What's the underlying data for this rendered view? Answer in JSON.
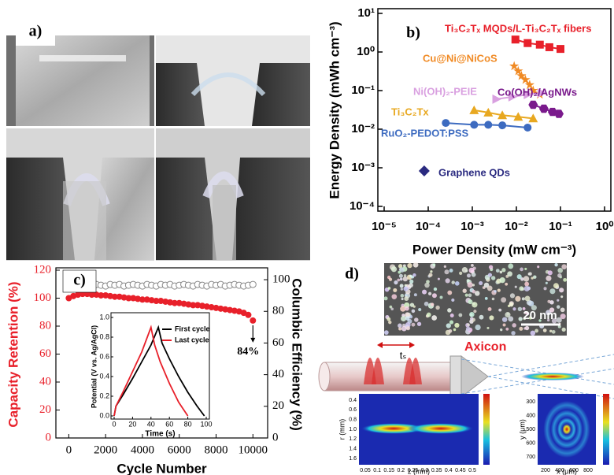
{
  "panel_a": {
    "label": "a)"
  },
  "chart_data": [
    {
      "type": "scatter",
      "label": "b)",
      "x_label": "Power Density (mW cm⁻³)",
      "y_label": "Energy Density (mWh cm⁻³)",
      "log_x": true,
      "log_y": true,
      "xlim": [
        1e-05,
        1
      ],
      "ylim": [
        0.0001,
        10
      ],
      "xticks": [
        {
          "value": 1e-05,
          "label": "10⁻⁵"
        },
        {
          "value": 0.0001,
          "label": "10⁻⁴"
        },
        {
          "value": 0.001,
          "label": "10⁻³"
        },
        {
          "value": 0.01,
          "label": "10⁻²"
        },
        {
          "value": 0.1,
          "label": "10⁻¹"
        },
        {
          "value": 1,
          "label": "10⁰"
        }
      ],
      "yticks": [
        {
          "value": 0.0001,
          "label": "10⁻⁴"
        },
        {
          "value": 0.001,
          "label": "10⁻³"
        },
        {
          "value": 0.01,
          "label": "10⁻²"
        },
        {
          "value": 0.1,
          "label": "10⁻¹"
        },
        {
          "value": 1,
          "label": "10⁰"
        },
        {
          "value": 10,
          "label": "10¹"
        }
      ],
      "series": [
        {
          "name": "Ti₃C₂Tₓ MQDs/L-Ti₃C₂Tₓ fibers",
          "color": "#e8202a",
          "marker": "square",
          "x": [
            0.0095,
            0.018,
            0.034,
            0.056,
            0.1
          ],
          "values": [
            2.1,
            1.7,
            1.55,
            1.33,
            1.2
          ]
        },
        {
          "name": "Cu@Ni@NiCoS",
          "color": "#f08a24",
          "marker": "star",
          "x": [
            0.0089,
            0.011,
            0.013,
            0.016,
            0.02,
            0.024,
            0.034
          ],
          "values": [
            0.43,
            0.32,
            0.24,
            0.19,
            0.14,
            0.1,
            0.079
          ]
        },
        {
          "name": "Ni(OH)₂-PEIE",
          "color": "#d9a0e0",
          "marker": "triangle-right",
          "x": [
            0.0035,
            0.0081,
            0.018,
            0.037
          ],
          "values": [
            0.06,
            0.069,
            0.079,
            0.087
          ]
        },
        {
          "name": "Co(OH)₂/AgNWs",
          "color": "#7a1a8c",
          "marker": "hexagon",
          "x": [
            0.024,
            0.042,
            0.066,
            0.092
          ],
          "values": [
            0.043,
            0.034,
            0.028,
            0.025
          ]
        },
        {
          "name": "Ti₃C₂Tx",
          "color": "#e8a820",
          "marker": "triangle",
          "x": [
            0.0011,
            0.0023,
            0.0048,
            0.011,
            0.024
          ],
          "values": [
            0.031,
            0.027,
            0.023,
            0.021,
            0.019
          ]
        },
        {
          "name": "RuO₂-PEDOT:PSS",
          "color": "#3d6bc0",
          "marker": "circle",
          "x": [
            0.00025,
            0.0011,
            0.0023,
            0.0048,
            0.018
          ],
          "values": [
            0.0145,
            0.013,
            0.013,
            0.0126,
            0.011
          ]
        },
        {
          "name": "Graphene QDs",
          "color": "#2a2a80",
          "marker": "diamond",
          "x": [
            8.1e-05
          ],
          "values": [
            0.00083
          ]
        }
      ]
    },
    {
      "type": "scatter",
      "label": "c)",
      "x_label": "Cycle Number",
      "y_label": "Capacity Retention (%)",
      "y2_label": "Columbic Efficiency (%)",
      "xlim": [
        -700,
        10800
      ],
      "ylim": [
        0,
        120
      ],
      "y2lim": [
        0,
        106
      ],
      "xticks": [
        0,
        2000,
        4000,
        6000,
        8000,
        10000
      ],
      "yticks": [
        0,
        20,
        40,
        60,
        80,
        100,
        120
      ],
      "y2ticks": [
        0,
        20,
        40,
        60,
        80,
        100
      ],
      "x": [
        0,
        250,
        500,
        750,
        1000,
        1250,
        1500,
        1750,
        2000,
        2250,
        2500,
        2750,
        3000,
        3250,
        3500,
        3750,
        4000,
        4250,
        4500,
        4750,
        5000,
        5250,
        5500,
        5750,
        6000,
        6250,
        6500,
        6750,
        7000,
        7250,
        7500,
        7750,
        8000,
        8250,
        8500,
        8750,
        9000,
        9250,
        9500,
        9750,
        10000
      ],
      "series": [
        {
          "name": "Capacity Retention",
          "color": "#e8202a",
          "values": [
            100,
            101.5,
            102.5,
            103,
            103,
            102.5,
            102.5,
            102,
            102,
            101.5,
            101,
            101,
            100.5,
            100,
            100,
            99.5,
            99,
            99,
            98.5,
            98,
            98,
            97.5,
            97,
            96.5,
            96.5,
            96,
            95.5,
            95,
            95,
            94.5,
            94,
            93.5,
            93,
            92.5,
            92,
            91.5,
            91,
            90.5,
            89.5,
            88,
            84
          ]
        },
        {
          "name": "Columbic Efficiency",
          "color": "#888888",
          "axis": "y2",
          "values": [
            96.5,
            97,
            96,
            97,
            96.5,
            96,
            97,
            96.5,
            96,
            97,
            96.5,
            97,
            96,
            96.5,
            97,
            96.5,
            96,
            97,
            96.5,
            96,
            97,
            96.5,
            97,
            96,
            96.5,
            97,
            96.5,
            96,
            97,
            96.5,
            96,
            97,
            96.5,
            97,
            96,
            96.5,
            97,
            96.5,
            96,
            96.5,
            97
          ]
        }
      ],
      "annotation": "84%"
    },
    {
      "type": "line",
      "x_label": "Time (s)",
      "y_label": "Potential (V vs. Ag/AgCl)",
      "xlim": [
        0,
        100
      ],
      "ylim": [
        0,
        1
      ],
      "xticks": [
        0,
        20,
        40,
        60,
        80,
        100
      ],
      "yticks": [
        {
          "value": 0,
          "label": "0.0"
        },
        0.2,
        0.4,
        0.6,
        0.8,
        {
          "value": 1,
          "label": "1.0"
        }
      ],
      "series": [
        {
          "name": "First cycle",
          "color": "#000000",
          "x": [
            0,
            2,
            10,
            20,
            30,
            40,
            48,
            52,
            60,
            70,
            80,
            90,
            98
          ],
          "values": [
            0,
            0.1,
            0.22,
            0.38,
            0.55,
            0.72,
            0.9,
            0.74,
            0.58,
            0.4,
            0.24,
            0.1,
            0
          ]
        },
        {
          "name": "Last cycle",
          "color": "#e8202a",
          "x": [
            0,
            2,
            10,
            20,
            30,
            40,
            44,
            50,
            60,
            70,
            80
          ],
          "values": [
            0,
            0.1,
            0.25,
            0.45,
            0.65,
            0.9,
            0.72,
            0.55,
            0.33,
            0.14,
            0
          ]
        }
      ]
    }
  ],
  "panel_d": {
    "label": "d)",
    "scale_bar": "20 nm",
    "axicon": "Axicon",
    "delay": "tₛ",
    "left_map": {
      "y_label": "r (mm)",
      "x_label": "z (mm)",
      "y_ticks": [
        "0.4",
        "0.6",
        "0.8",
        "1.0",
        "1.2",
        "1.4",
        "1.6"
      ],
      "x_ticks": [
        "0.05",
        "0.1",
        "0.15",
        "0.2",
        "0.25",
        "0.3",
        "0.35",
        "0.4",
        "0.45",
        "0.5"
      ]
    },
    "right_map": {
      "y_label": "y (μm)",
      "x_label": "x (μm)",
      "y_ticks": [
        "300",
        "400",
        "500",
        "600",
        "700"
      ],
      "x_ticks": [
        "200",
        "400",
        "600",
        "800"
      ]
    }
  }
}
